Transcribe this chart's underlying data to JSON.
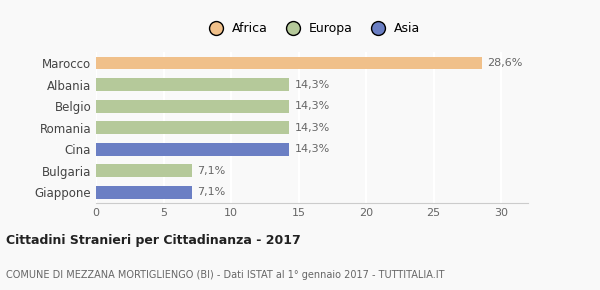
{
  "categories": [
    "Marocco",
    "Albania",
    "Belgio",
    "Romania",
    "Cina",
    "Bulgaria",
    "Giappone"
  ],
  "values": [
    28.6,
    14.3,
    14.3,
    14.3,
    14.3,
    7.1,
    7.1
  ],
  "labels": [
    "28,6%",
    "14,3%",
    "14,3%",
    "14,3%",
    "14,3%",
    "7,1%",
    "7,1%"
  ],
  "colors": [
    "#f0c08a",
    "#b5c99a",
    "#b5c99a",
    "#b5c99a",
    "#6b7fc4",
    "#b5c99a",
    "#6b7fc4"
  ],
  "legend_items": [
    {
      "label": "Africa",
      "color": "#f0c08a"
    },
    {
      "label": "Europa",
      "color": "#b5c99a"
    },
    {
      "label": "Asia",
      "color": "#6b7fc4"
    }
  ],
  "xlim": [
    0,
    32
  ],
  "xticks": [
    0,
    5,
    10,
    15,
    20,
    25,
    30
  ],
  "title_bold": "Cittadini Stranieri per Cittadinanza - 2017",
  "subtitle": "COMUNE DI MEZZANA MORTIGLIENGO (BI) - Dati ISTAT al 1° gennaio 2017 - TUTTITALIA.IT",
  "background_color": "#f9f9f9",
  "bar_height": 0.6,
  "label_fontsize": 8,
  "ytick_fontsize": 8.5,
  "xtick_fontsize": 8
}
